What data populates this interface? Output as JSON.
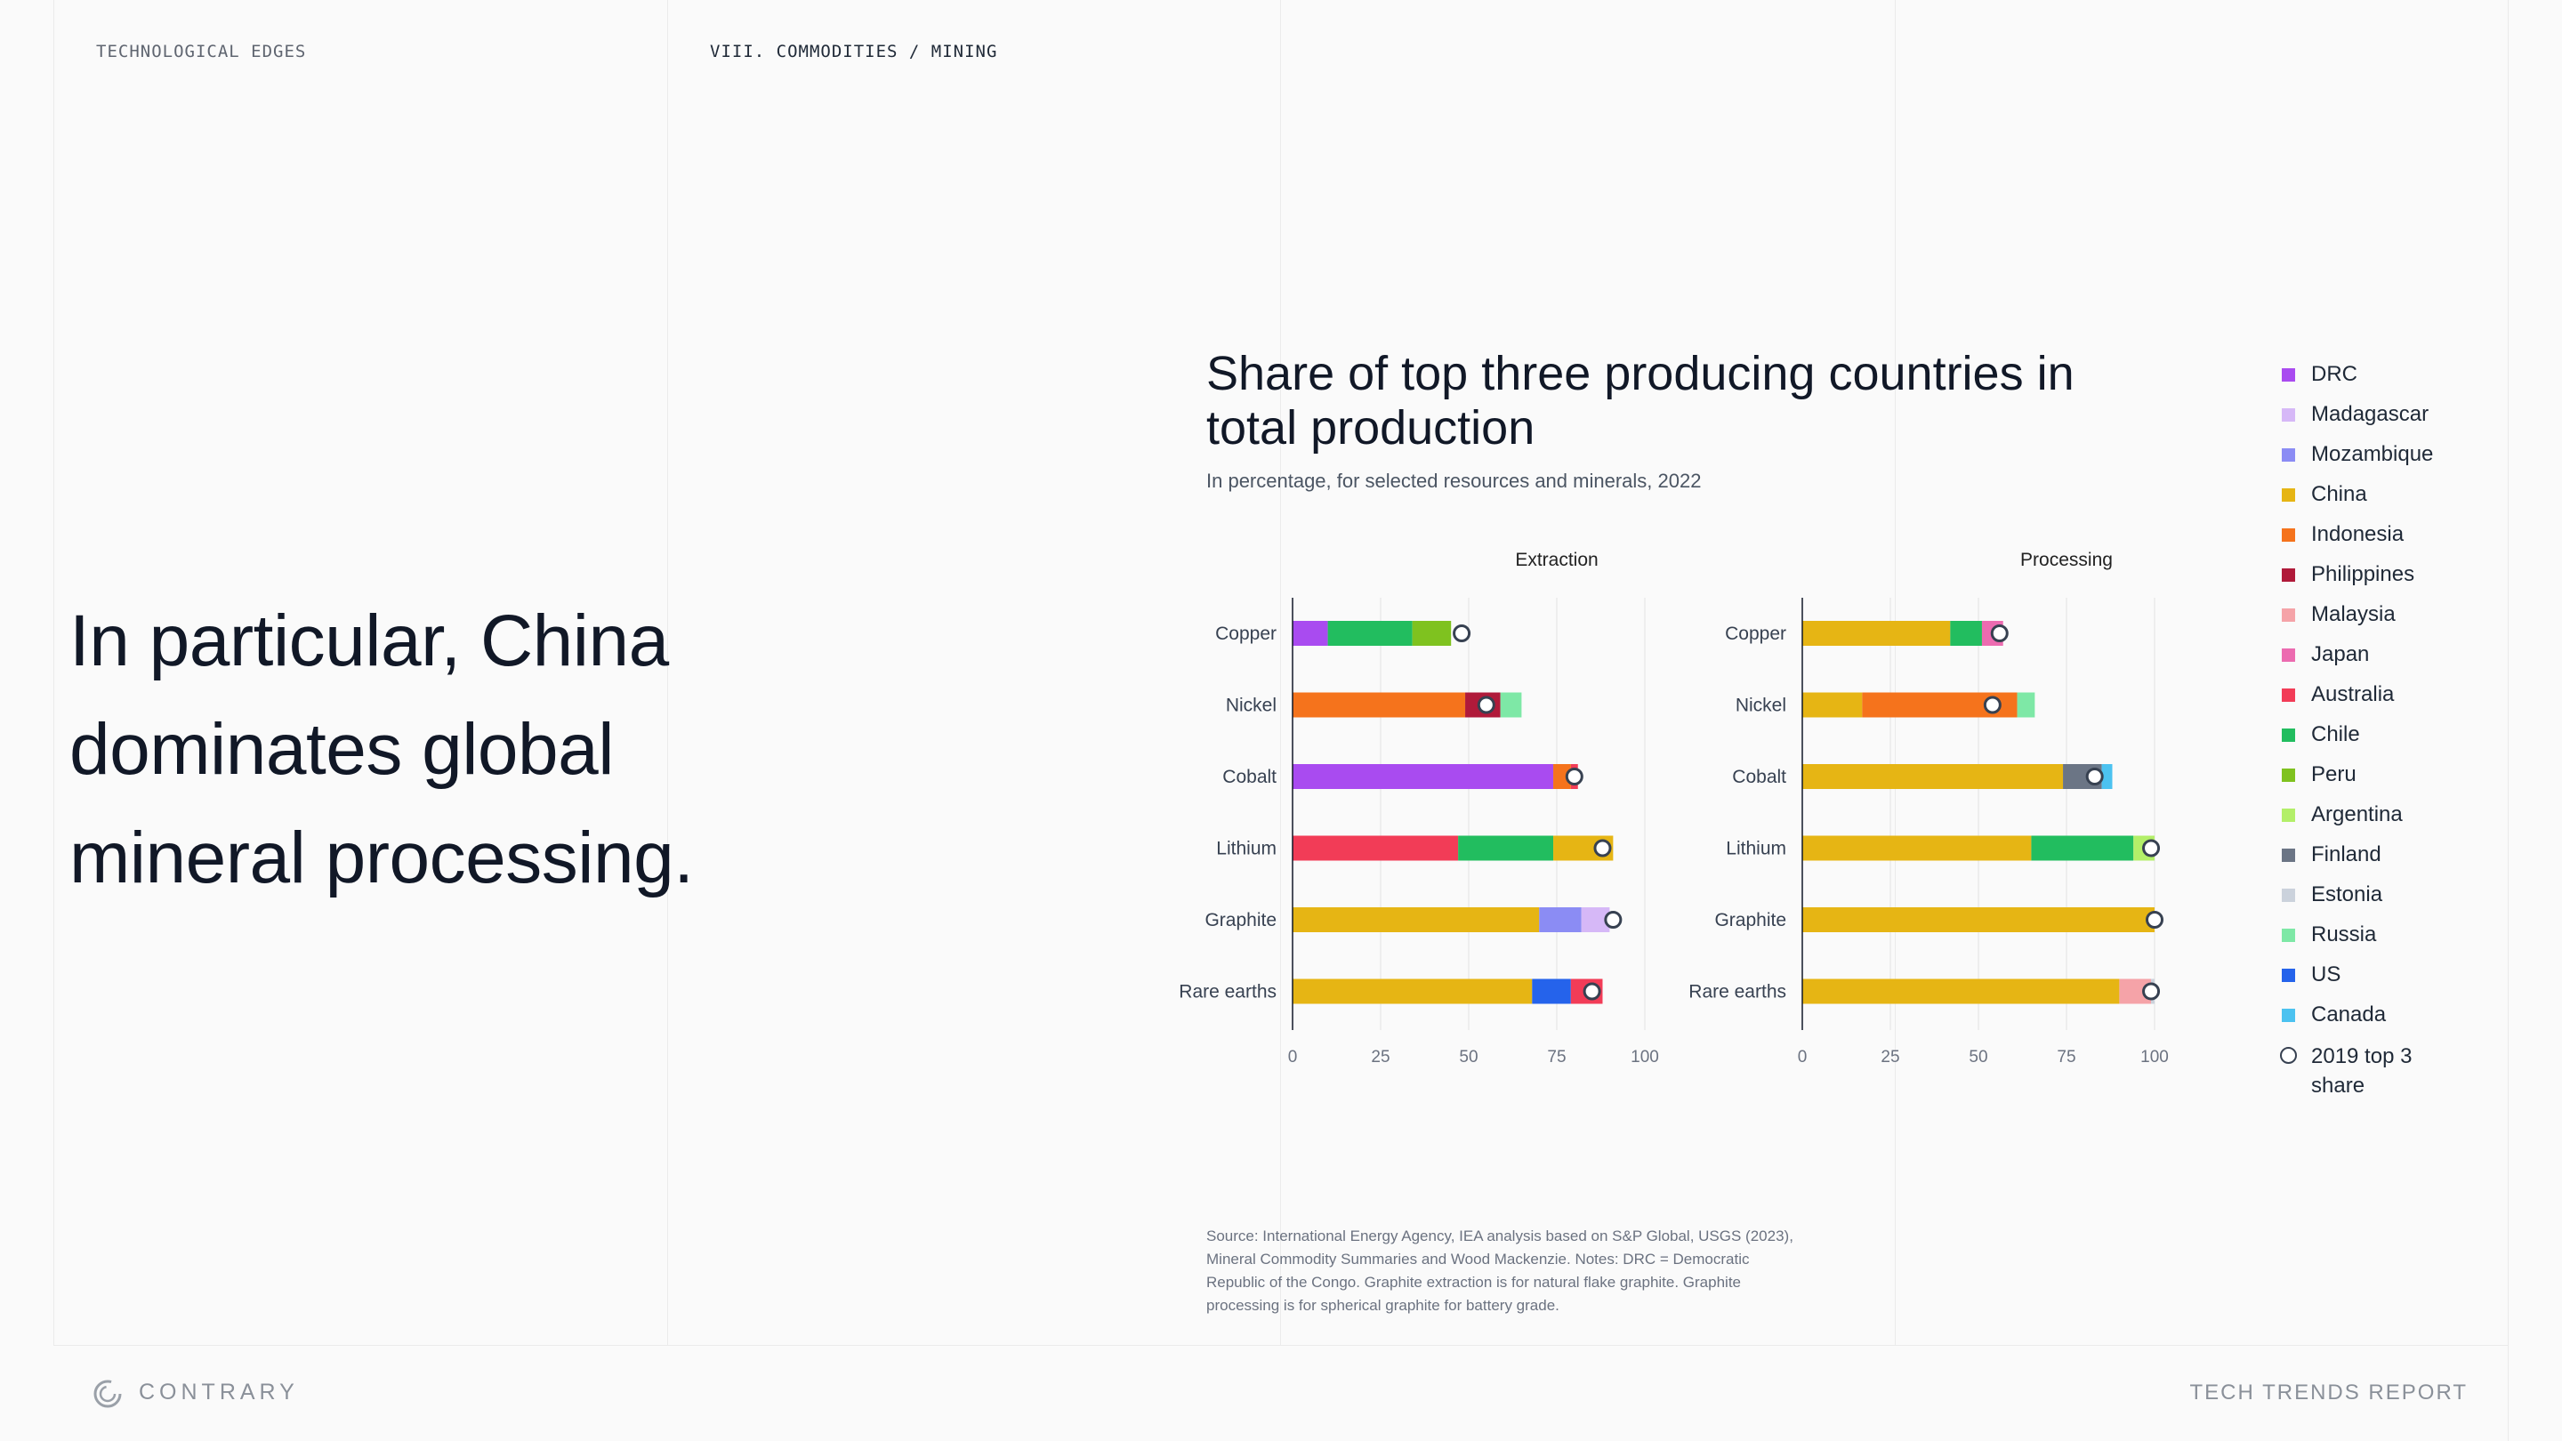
{
  "header": {
    "left_label": "TECHNOLOGICAL EDGES",
    "section_label": "VIII. COMMODITIES / MINING"
  },
  "headline": {
    "line1": "In particular, China",
    "line2": "dominates global",
    "line3": "mineral processing."
  },
  "chart_data": {
    "type": "bar",
    "stacked": true,
    "orientation": "horizontal",
    "title": "Share of top three producing countries in total production",
    "subtitle": "In percentage, for selected resources and minerals, 2022",
    "xlim": [
      0,
      100
    ],
    "xticks": [
      0,
      25,
      50,
      75,
      100
    ],
    "colors": {
      "DRC": "#a94bf0",
      "Madagascar": "#d6b8f7",
      "Mozambique": "#8b8cf4",
      "China": "#e6b514",
      "Indonesia": "#f5731c",
      "Philippines": "#b01a3a",
      "Malaysia": "#f5a3a8",
      "Japan": "#ec6bb0",
      "Australia": "#f23c57",
      "Chile": "#22bd5f",
      "Peru": "#7fc21f",
      "Argentina": "#b3ef69",
      "Finland": "#6b7585",
      "Estonia": "#cbd2dc",
      "Russia": "#7ee8a6",
      "US": "#2563eb",
      "Canada": "#4cc2f0"
    },
    "legend": {
      "position": "right",
      "entries": [
        "DRC",
        "Madagascar",
        "Mozambique",
        "China",
        "Indonesia",
        "Philippines",
        "Malaysia",
        "Japan",
        "Australia",
        "Chile",
        "Peru",
        "Argentina",
        "Finland",
        "Estonia",
        "Russia",
        "US",
        "Canada"
      ],
      "marker_label": "2019 top 3 share"
    },
    "panels": [
      {
        "title": "Extraction",
        "categories": [
          "Copper",
          "Nickel",
          "Cobalt",
          "Lithium",
          "Graphite",
          "Rare earths"
        ],
        "bars": [
          {
            "segments": [
              {
                "country": "DRC",
                "value": 10
              },
              {
                "country": "Chile",
                "value": 24
              },
              {
                "country": "Peru",
                "value": 11
              }
            ],
            "marker_2019": 48
          },
          {
            "segments": [
              {
                "country": "Indonesia",
                "value": 49
              },
              {
                "country": "Philippines",
                "value": 10
              },
              {
                "country": "Russia",
                "value": 6
              }
            ],
            "marker_2019": 55
          },
          {
            "segments": [
              {
                "country": "DRC",
                "value": 74
              },
              {
                "country": "Indonesia",
                "value": 5
              },
              {
                "country": "Australia",
                "value": 2
              }
            ],
            "marker_2019": 80
          },
          {
            "segments": [
              {
                "country": "Australia",
                "value": 47
              },
              {
                "country": "Chile",
                "value": 27
              },
              {
                "country": "China",
                "value": 17
              }
            ],
            "marker_2019": 88
          },
          {
            "segments": [
              {
                "country": "China",
                "value": 70
              },
              {
                "country": "Mozambique",
                "value": 12
              },
              {
                "country": "Madagascar",
                "value": 8
              }
            ],
            "marker_2019": 91
          },
          {
            "segments": [
              {
                "country": "China",
                "value": 68
              },
              {
                "country": "US",
                "value": 11
              },
              {
                "country": "Australia",
                "value": 9
              }
            ],
            "marker_2019": 85
          }
        ]
      },
      {
        "title": "Processing",
        "categories": [
          "Copper",
          "Nickel",
          "Cobalt",
          "Lithium",
          "Graphite",
          "Rare earths"
        ],
        "bars": [
          {
            "segments": [
              {
                "country": "China",
                "value": 42
              },
              {
                "country": "Chile",
                "value": 9
              },
              {
                "country": "Japan",
                "value": 6
              }
            ],
            "marker_2019": 56
          },
          {
            "segments": [
              {
                "country": "China",
                "value": 17
              },
              {
                "country": "Indonesia",
                "value": 44
              },
              {
                "country": "Russia",
                "value": 5
              }
            ],
            "marker_2019": 54
          },
          {
            "segments": [
              {
                "country": "China",
                "value": 74
              },
              {
                "country": "Finland",
                "value": 11
              },
              {
                "country": "Canada",
                "value": 3
              }
            ],
            "marker_2019": 83
          },
          {
            "segments": [
              {
                "country": "China",
                "value": 65
              },
              {
                "country": "Chile",
                "value": 29
              },
              {
                "country": "Argentina",
                "value": 6
              }
            ],
            "marker_2019": 99
          },
          {
            "segments": [
              {
                "country": "China",
                "value": 100
              }
            ],
            "marker_2019": 100
          },
          {
            "segments": [
              {
                "country": "China",
                "value": 90
              },
              {
                "country": "Malaysia",
                "value": 9
              },
              {
                "country": "Estonia",
                "value": 1
              }
            ],
            "marker_2019": 99
          }
        ]
      }
    ]
  },
  "source_note": "Source: International Energy Agency, IEA analysis based on S&P Global, USGS (2023), Mineral Commodity Summaries and Wood Mackenzie. Notes: DRC = Democratic Republic of the Congo. Graphite extraction is for natural flake graphite. Graphite processing is for spherical graphite for battery grade.",
  "footer": {
    "brand": "CONTRARY",
    "report": "TECH TRENDS REPORT"
  }
}
